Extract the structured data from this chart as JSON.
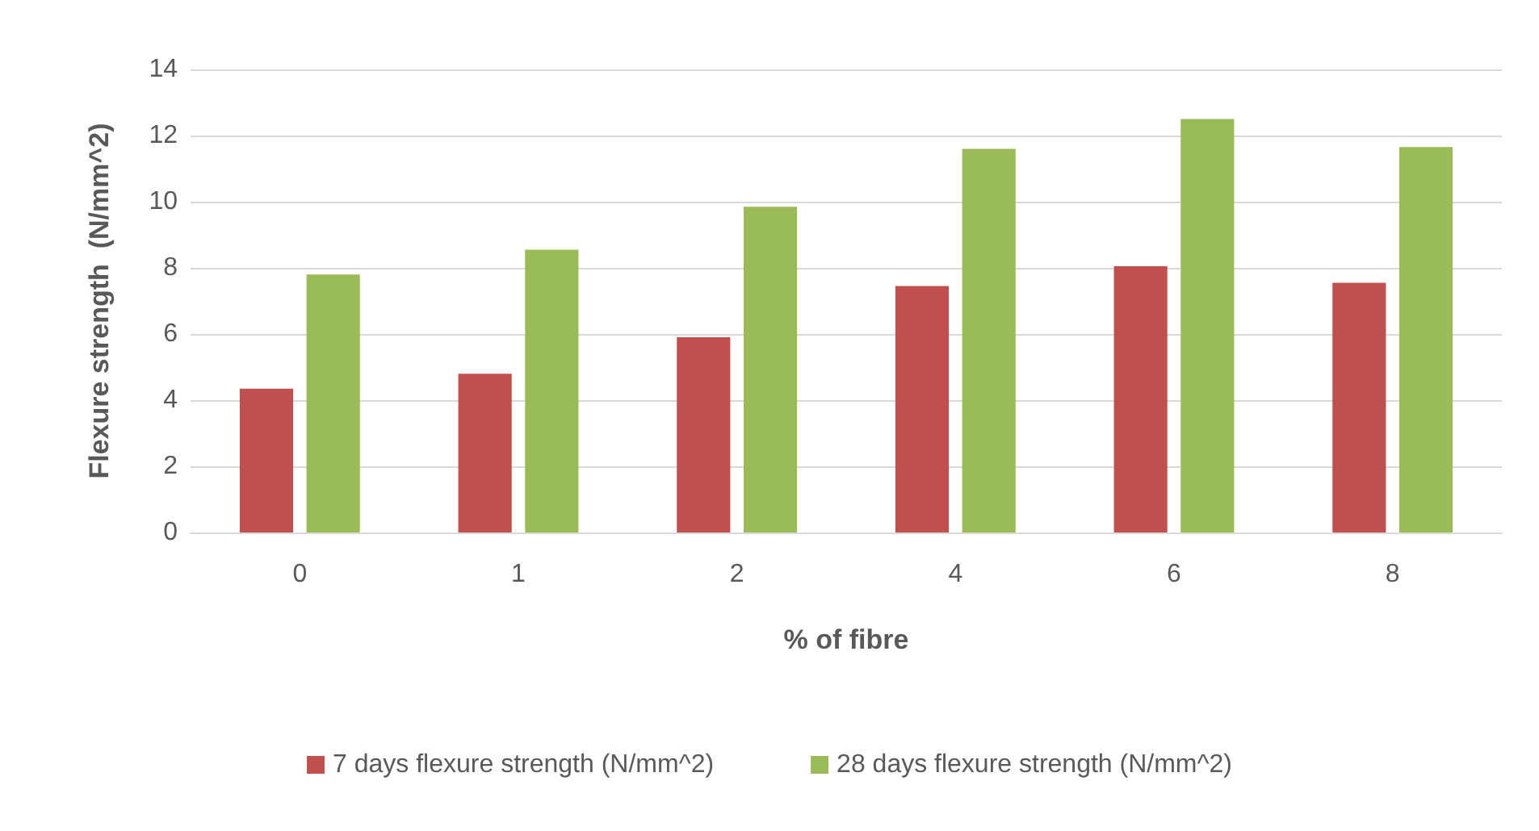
{
  "chart_data": {
    "type": "bar",
    "xlabel": "% of fibre",
    "ylabel": "Flexure strength  (N/mm^2)",
    "categories": [
      "0",
      "1",
      "2",
      "4",
      "6",
      "8"
    ],
    "series": [
      {
        "name": "7 days flexure strength (N/mm^2)",
        "color": "#c0504d",
        "values": [
          4.35,
          4.8,
          5.9,
          7.45,
          8.05,
          7.55
        ]
      },
      {
        "name": "28 days flexure strength (N/mm^2)",
        "color": "#9bbb59",
        "values": [
          7.8,
          8.55,
          9.85,
          11.6,
          12.5,
          11.65
        ]
      }
    ],
    "ylim": [
      0,
      14
    ],
    "yticks": [
      0,
      2,
      4,
      6,
      8,
      10,
      12,
      14
    ],
    "grid": "y",
    "legend": "bottom"
  }
}
